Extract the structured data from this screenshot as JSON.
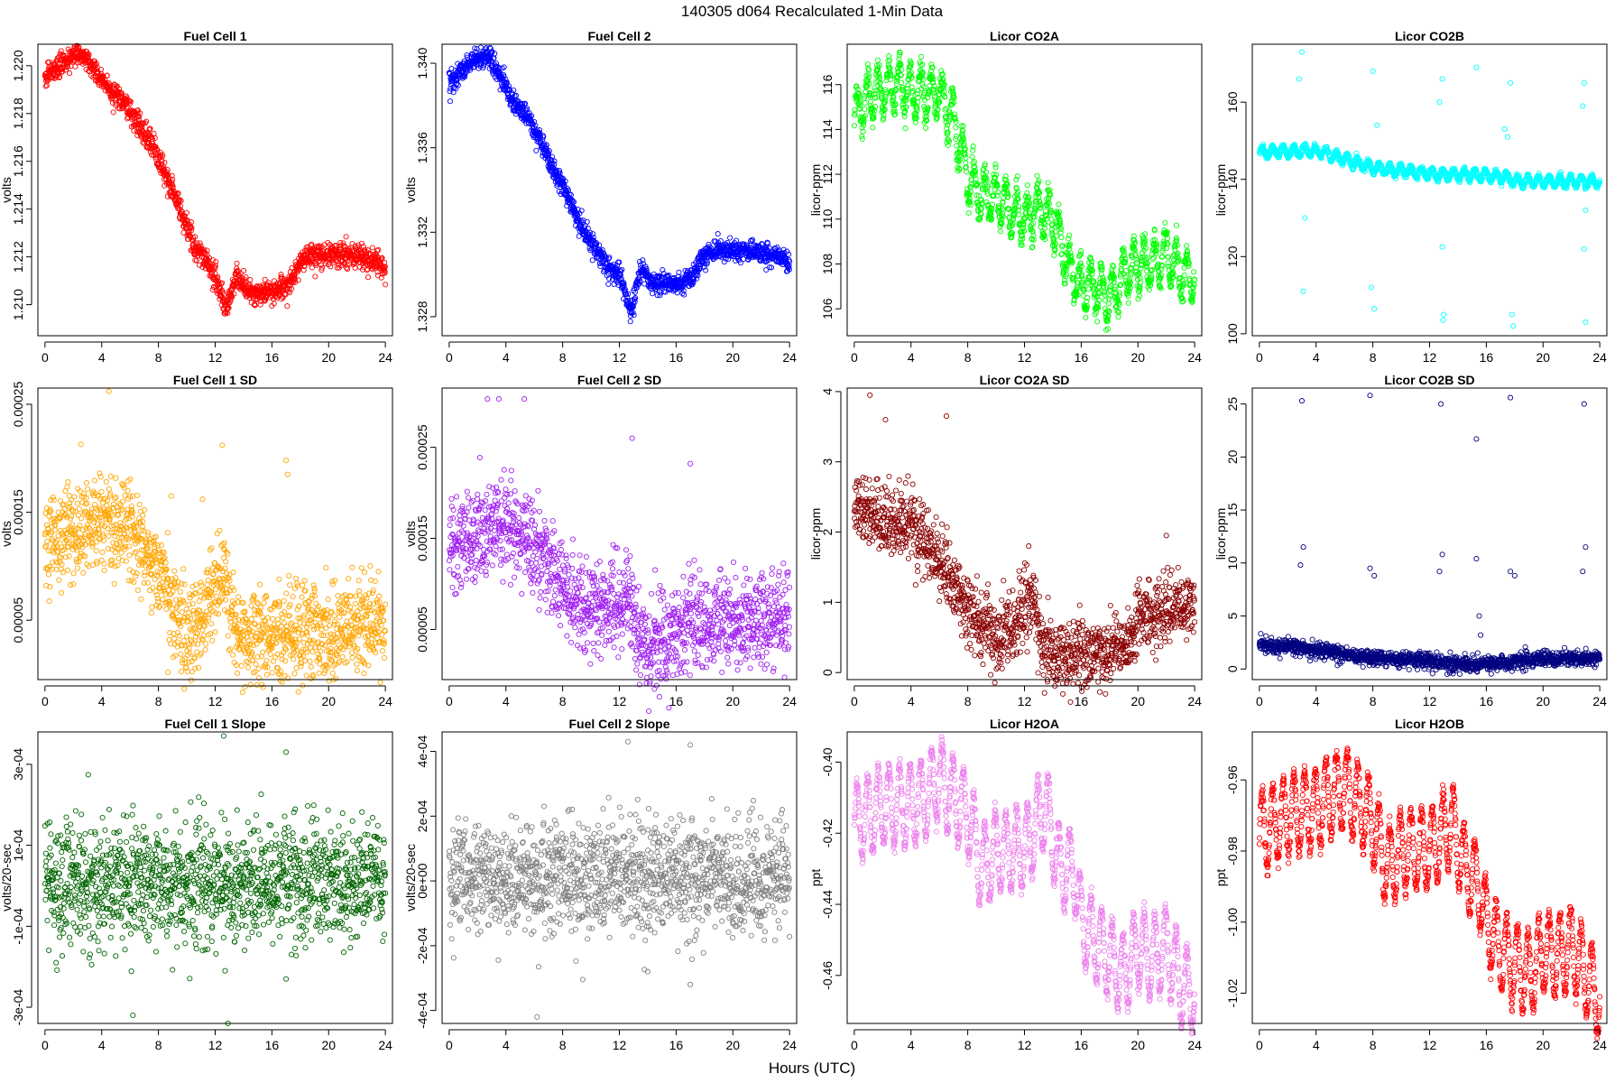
{
  "header": {
    "title": "140305   d064   Recalculated 1-Min Data",
    "xlabel": "Hours (UTC)"
  },
  "chart_data": [
    {
      "type": "scatter",
      "title": "Fuel Cell 1",
      "ylabel": "volts",
      "color": "#ff0000",
      "xlim": [
        -0.5,
        24.5
      ],
      "ylim": [
        1.2087,
        1.2209
      ],
      "xticks": [
        0,
        4,
        8,
        12,
        16,
        20,
        24
      ],
      "yticks": [
        1.21,
        1.212,
        1.214,
        1.216,
        1.218,
        1.22
      ],
      "ytick_labels": [
        "1.210",
        "1.212",
        "1.214",
        "1.216",
        "1.218",
        "1.220"
      ],
      "profile_x": [
        0,
        1,
        2,
        2.6,
        3.5,
        4.5,
        5.5,
        6.5,
        7.5,
        8.5,
        9.5,
        10.5,
        11.3,
        12,
        12.8,
        13.5,
        14,
        14.5,
        16,
        17,
        18,
        18.5,
        20,
        22,
        23.5,
        24
      ],
      "profile_y": [
        1.2195,
        1.22,
        1.2204,
        1.2205,
        1.2198,
        1.219,
        1.2185,
        1.2176,
        1.2168,
        1.2155,
        1.214,
        1.2125,
        1.2118,
        1.2112,
        1.2098,
        1.2112,
        1.2108,
        1.2105,
        1.2105,
        1.2107,
        1.2118,
        1.212,
        1.2121,
        1.212,
        1.2118,
        1.2114
      ],
      "noise": 0.00025,
      "wave_amp": 0,
      "outliers": []
    },
    {
      "type": "scatter",
      "title": "Fuel Cell 2",
      "ylabel": "volts",
      "color": "#0000ff",
      "xlim": [
        -0.5,
        24.5
      ],
      "ylim": [
        1.3271,
        1.3409
      ],
      "xticks": [
        0,
        4,
        8,
        12,
        16,
        20,
        24
      ],
      "yticks": [
        1.328,
        1.332,
        1.336,
        1.34
      ],
      "ytick_labels": [
        "1.328",
        "1.332",
        "1.336",
        "1.340"
      ],
      "profile_x": [
        0,
        1,
        2,
        2.7,
        3.5,
        4.5,
        5.5,
        6.5,
        7.5,
        8.5,
        9.5,
        10.5,
        11.3,
        12,
        12.8,
        13.5,
        14,
        14.5,
        16,
        17,
        18,
        18.5,
        20,
        22,
        23.5,
        24
      ],
      "profile_y": [
        1.339,
        1.3397,
        1.3402,
        1.3404,
        1.3395,
        1.3382,
        1.3375,
        1.3362,
        1.3348,
        1.3335,
        1.332,
        1.331,
        1.3303,
        1.33,
        1.3282,
        1.3303,
        1.3298,
        1.3296,
        1.3296,
        1.3298,
        1.3309,
        1.3311,
        1.3312,
        1.331,
        1.3308,
        1.3303
      ],
      "noise": 0.00025,
      "wave_amp": 0,
      "outliers": []
    },
    {
      "type": "scatter",
      "title": "Licor CO2A",
      "ylabel": "licor-ppm",
      "color": "#00ff00",
      "xlim": [
        -0.5,
        24.5
      ],
      "ylim": [
        104.8,
        117.8
      ],
      "xticks": [
        0,
        4,
        8,
        12,
        16,
        20,
        24
      ],
      "yticks": [
        106,
        108,
        110,
        112,
        114,
        116
      ],
      "ytick_labels": [
        "106",
        "108",
        "110",
        "112",
        "114",
        "116"
      ],
      "profile_x": [
        0,
        1,
        2,
        3,
        4,
        5,
        6,
        7,
        8,
        9,
        10,
        11,
        12,
        13,
        14,
        15,
        16,
        17,
        18,
        19,
        20,
        21,
        22,
        23,
        24
      ],
      "profile_y": [
        114.5,
        115.5,
        115.8,
        116,
        115.7,
        115.7,
        115.5,
        114.5,
        111.8,
        111.0,
        111.0,
        110.5,
        110.0,
        110.5,
        110.0,
        108.0,
        107.0,
        107.0,
        106.5,
        107.5,
        108.0,
        108.0,
        108.5,
        107.5,
        107.5
      ],
      "noise": 0.3,
      "wave_amp": 1.0,
      "outliers": []
    },
    {
      "type": "scatter",
      "title": "Licor CO2B",
      "ylabel": "licor-ppm",
      "color": "#00ffff",
      "xlim": [
        -0.5,
        24.5
      ],
      "ylim": [
        99.5,
        175
      ],
      "xticks": [
        0,
        4,
        8,
        12,
        16,
        20,
        24
      ],
      "yticks": [
        100,
        120,
        140,
        160
      ],
      "ytick_labels": [
        "100",
        "120",
        "140",
        "160"
      ],
      "profile_x": [
        0,
        4,
        8,
        12,
        16,
        17.5,
        18,
        20,
        24
      ],
      "profile_y": [
        147,
        147.5,
        143,
        141.5,
        141,
        140.5,
        139.5,
        139.5,
        139.5
      ],
      "noise": 0.35,
      "wave_amp": 1.3,
      "outliers": [
        [
          3.0,
          173
        ],
        [
          2.8,
          166
        ],
        [
          3.2,
          130
        ],
        [
          3.1,
          111
        ],
        [
          8.0,
          168
        ],
        [
          7.9,
          112
        ],
        [
          8.1,
          106.5
        ],
        [
          8.3,
          154
        ],
        [
          12.9,
          166
        ],
        [
          12.7,
          160
        ],
        [
          12.9,
          122.5
        ],
        [
          13.0,
          105
        ],
        [
          12.95,
          103.5
        ],
        [
          15.3,
          169
        ],
        [
          17.7,
          165
        ],
        [
          17.5,
          151
        ],
        [
          17.3,
          153
        ],
        [
          17.8,
          105
        ],
        [
          17.9,
          102
        ],
        [
          22.9,
          165
        ],
        [
          22.8,
          159
        ],
        [
          23.0,
          132
        ],
        [
          22.9,
          122
        ],
        [
          23.0,
          103
        ]
      ]
    },
    {
      "type": "scatter",
      "title": "Fuel Cell 1 SD",
      "ylabel": "volts",
      "color": "#ffa500",
      "xlim": [
        -0.5,
        24.5
      ],
      "ylim": [
        -5e-06,
        0.000265
      ],
      "xticks": [
        0,
        4,
        8,
        12,
        16,
        20,
        24
      ],
      "yticks": [
        5e-05,
        0.00015,
        0.00025
      ],
      "ytick_labels": [
        "0.00005",
        "0.00015",
        "0.00025"
      ],
      "profile_x": [
        0,
        2,
        4,
        6,
        8,
        9,
        10,
        11,
        12,
        12.7,
        13.2,
        14,
        16,
        18,
        20,
        22,
        24
      ],
      "profile_y": [
        0.000125,
        0.000135,
        0.000145,
        0.00013,
        0.0001,
        6e-05,
        4.5e-05,
        5e-05,
        8e-05,
        9e-05,
        5e-05,
        3e-05,
        3.5e-05,
        3.8e-05,
        4e-05,
        4.5e-05,
        5e-05
      ],
      "noise": 2.2e-05,
      "wave_amp": 0,
      "outliers": [
        [
          4.5,
          0.000262
        ],
        [
          12.5,
          0.000212
        ],
        [
          17.0,
          0.000198
        ],
        [
          17.1,
          0.000185
        ],
        [
          8.9,
          0.000165
        ],
        [
          11.1,
          0.000162
        ]
      ]
    },
    {
      "type": "scatter",
      "title": "Fuel Cell 2 SD",
      "ylabel": "volts",
      "color": "#a020f0",
      "xlim": [
        -0.5,
        24.5
      ],
      "ylim": [
        -5e-06,
        0.000315
      ],
      "xticks": [
        0,
        4,
        8,
        12,
        16,
        20,
        24
      ],
      "yticks": [
        5e-05,
        0.00015,
        0.00025
      ],
      "ytick_labels": [
        "0.00005",
        "0.00015",
        "0.00025"
      ],
      "profile_x": [
        0,
        2,
        4,
        6,
        8,
        9,
        10,
        11,
        12,
        12.7,
        13.2,
        14,
        16,
        18,
        20,
        22,
        24
      ],
      "profile_y": [
        0.00014,
        0.00015,
        0.00017,
        0.00014,
        0.0001,
        8e-05,
        7e-05,
        7e-05,
        8e-05,
        9e-05,
        5e-05,
        3e-05,
        5e-05,
        5.5e-05,
        6e-05,
        6e-05,
        6.5e-05
      ],
      "noise": 2.6e-05,
      "wave_amp": 0,
      "outliers": [
        [
          2.7,
          0.000303
        ],
        [
          3.5,
          0.000303
        ],
        [
          5.3,
          0.000303
        ],
        [
          12.9,
          0.00026
        ],
        [
          17.0,
          0.000232
        ]
      ]
    },
    {
      "type": "scatter",
      "title": "Licor CO2A SD",
      "ylabel": "licor-ppm",
      "color": "#8b0000",
      "xlim": [
        -0.5,
        24.5
      ],
      "ylim": [
        -0.1,
        4.05
      ],
      "xticks": [
        0,
        4,
        8,
        12,
        16,
        20,
        24
      ],
      "yticks": [
        0,
        1,
        2,
        3,
        4
      ],
      "ytick_labels": [
        "0",
        "1",
        "2",
        "3",
        "4"
      ],
      "profile_x": [
        0,
        2,
        4,
        6,
        8,
        9,
        10,
        11,
        12,
        12.7,
        13.3,
        14,
        16,
        18,
        19.5,
        20,
        22,
        24
      ],
      "profile_y": [
        2.4,
        2.2,
        2.1,
        1.6,
        0.9,
        0.7,
        0.5,
        0.6,
        0.9,
        1.1,
        0.3,
        0.25,
        0.25,
        0.3,
        0.5,
        0.8,
        0.9,
        1.0
      ],
      "noise": 0.25,
      "wave_amp": 0,
      "outliers": [
        [
          1.1,
          3.95
        ],
        [
          2.2,
          3.6
        ],
        [
          6.5,
          3.65
        ],
        [
          12.3,
          1.8
        ],
        [
          22.0,
          1.95
        ]
      ]
    },
    {
      "type": "scatter",
      "title": "Licor CO2B SD",
      "ylabel": "licor-ppm",
      "color": "#000080",
      "xlim": [
        -0.5,
        24.5
      ],
      "ylim": [
        -1,
        26.5
      ],
      "xticks": [
        0,
        4,
        8,
        12,
        16,
        20,
        24
      ],
      "yticks": [
        0,
        5,
        10,
        15,
        20,
        25
      ],
      "ytick_labels": [
        "0",
        "5",
        "10",
        "15",
        "20",
        "25"
      ],
      "profile_x": [
        0,
        4,
        8,
        12,
        14,
        16,
        20,
        24
      ],
      "profile_y": [
        2.3,
        1.8,
        1.0,
        0.8,
        0.4,
        0.5,
        0.9,
        1.0
      ],
      "noise": 0.35,
      "wave_amp": 0,
      "outliers": [
        [
          3.0,
          25.3
        ],
        [
          7.8,
          25.8
        ],
        [
          12.8,
          25.0
        ],
        [
          17.7,
          25.6
        ],
        [
          22.9,
          25.0
        ],
        [
          15.3,
          21.7
        ],
        [
          3.1,
          11.5
        ],
        [
          2.9,
          9.8
        ],
        [
          7.8,
          9.5
        ],
        [
          8.1,
          8.8
        ],
        [
          12.9,
          10.8
        ],
        [
          12.7,
          9.2
        ],
        [
          15.3,
          10.4
        ],
        [
          17.7,
          9.2
        ],
        [
          18.0,
          8.8
        ],
        [
          23.0,
          11.5
        ],
        [
          22.8,
          9.2
        ],
        [
          15.5,
          5.0
        ],
        [
          15.6,
          3.2
        ]
      ]
    },
    {
      "type": "scatter",
      "title": "Fuel Cell 1 Slope",
      "ylabel": "volts/20-sec",
      "color": "#006400",
      "xlim": [
        -0.5,
        24.5
      ],
      "ylim": [
        -0.00034,
        0.00038
      ],
      "xticks": [
        0,
        4,
        8,
        12,
        16,
        20,
        24
      ],
      "yticks": [
        -0.0003,
        -0.0001,
        0.0001,
        0.0003
      ],
      "ytick_labels": [
        "-3e-04",
        "-1e-04",
        "1e-04",
        "3e-04"
      ],
      "profile_x": [
        0,
        24
      ],
      "profile_y": [
        1e-05,
        1e-05
      ],
      "noise": 7.5e-05,
      "wave_amp": 0,
      "outliers": [
        [
          12.6,
          0.00037
        ],
        [
          17.0,
          0.00033
        ],
        [
          6.2,
          -0.00032
        ],
        [
          12.9,
          -0.00034
        ],
        [
          17.0,
          -0.00023
        ],
        [
          12.7,
          -0.00021
        ]
      ]
    },
    {
      "type": "scatter",
      "title": "Fuel Cell 2 Slope",
      "ylabel": "volts/20-sec",
      "color": "#808080",
      "xlim": [
        -0.5,
        24.5
      ],
      "ylim": [
        -0.00044,
        0.00046
      ],
      "xticks": [
        0,
        4,
        8,
        12,
        16,
        20,
        24
      ],
      "yticks": [
        -0.0004,
        -0.0002,
        0,
        0.0002,
        0.0004
      ],
      "ytick_labels": [
        "-4e-04",
        "-2e-04",
        "0e+00",
        "2e-04",
        "4e-04"
      ],
      "profile_x": [
        0,
        24
      ],
      "profile_y": [
        1e-05,
        1e-05
      ],
      "noise": 9e-05,
      "wave_amp": 0,
      "outliers": [
        [
          12.6,
          0.00043
        ],
        [
          17.0,
          0.00042
        ],
        [
          6.2,
          -0.00042
        ],
        [
          17.0,
          -0.00032
        ],
        [
          14.0,
          -0.00028
        ]
      ]
    },
    {
      "type": "scatter",
      "title": "Licor H2OA",
      "ylabel": "ppt",
      "color": "#ee82ee",
      "xlim": [
        -0.5,
        24.5
      ],
      "ylim": [
        -0.4735,
        -0.3915
      ],
      "xticks": [
        0,
        4,
        8,
        12,
        16,
        20,
        24
      ],
      "yticks": [
        -0.46,
        -0.44,
        -0.42,
        -0.4
      ],
      "ytick_labels": [
        "-0.46",
        "-0.44",
        "-0.42",
        "-0.40"
      ],
      "profile_x": [
        0,
        2,
        4,
        5,
        6,
        8,
        9,
        10,
        12,
        13.5,
        14.5,
        15.5,
        16,
        17,
        18,
        19,
        20,
        21,
        22,
        23,
        24
      ],
      "profile_y": [
        -0.418,
        -0.412,
        -0.412,
        -0.41,
        -0.405,
        -0.415,
        -0.43,
        -0.425,
        -0.425,
        -0.412,
        -0.43,
        -0.43,
        -0.445,
        -0.45,
        -0.455,
        -0.46,
        -0.452,
        -0.455,
        -0.452,
        -0.462,
        -0.465
      ],
      "noise": 0.0012,
      "wave_amp": 0.011,
      "outliers": []
    },
    {
      "type": "scatter",
      "title": "Licor H2OB",
      "ylabel": "ppt",
      "color": "#ff0000",
      "xlim": [
        -0.5,
        24.5
      ],
      "ylim": [
        -1.0285,
        -0.9465
      ],
      "xticks": [
        0,
        4,
        8,
        12,
        16,
        20,
        24
      ],
      "yticks": [
        -1.02,
        -1.0,
        -0.98,
        -0.96
      ],
      "ytick_labels": [
        "-1.02",
        "-1.00",
        "-0.98",
        "-0.96"
      ],
      "profile_x": [
        0,
        2,
        4,
        5,
        6,
        8,
        9,
        10,
        12,
        13.5,
        14.5,
        15.5,
        16,
        17,
        18,
        19,
        20,
        21,
        22,
        23,
        24
      ],
      "profile_y": [
        -0.975,
        -0.97,
        -0.968,
        -0.965,
        -0.962,
        -0.972,
        -0.985,
        -0.98,
        -0.98,
        -0.972,
        -0.985,
        -0.99,
        -1.0,
        -1.008,
        -1.012,
        -1.015,
        -1.008,
        -1.01,
        -1.007,
        -1.015,
        -1.022
      ],
      "noise": 0.0012,
      "wave_amp": 0.011,
      "outliers": []
    }
  ]
}
